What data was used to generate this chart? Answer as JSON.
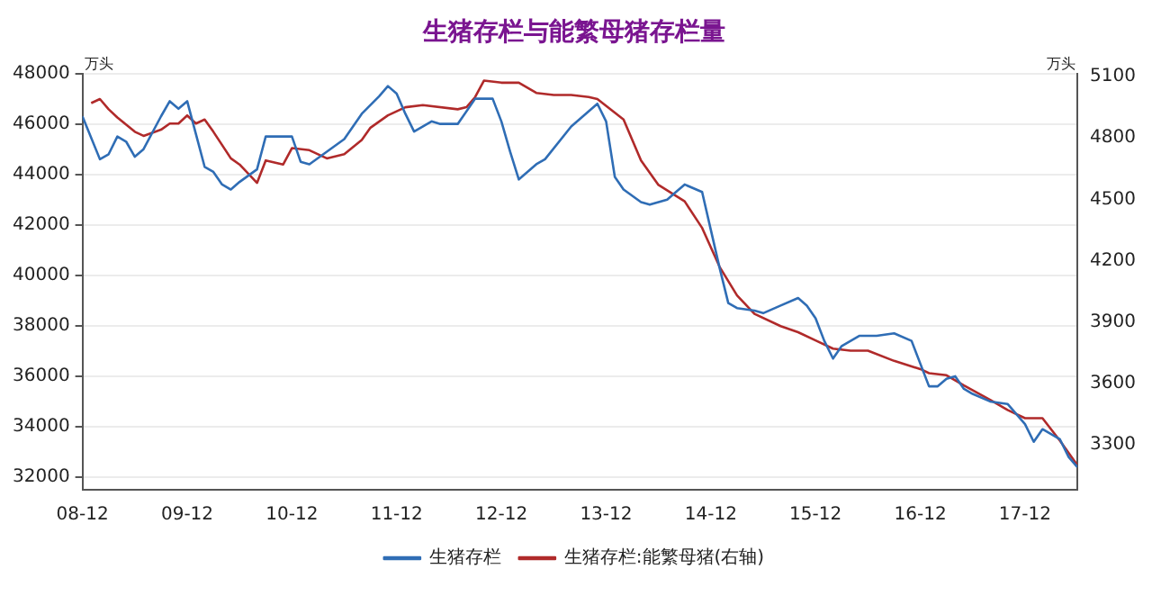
{
  "chart_data": {
    "type": "line",
    "title": "生猪存栏与能繁母猪存栏量",
    "ylabel": "万头",
    "y2label": "万头",
    "xlim": [
      "2008-12",
      "2018-06"
    ],
    "xticks": [
      {
        "value": "2008-12",
        "label": "08-12"
      },
      {
        "value": "2009-12",
        "label": "09-12"
      },
      {
        "value": "2010-12",
        "label": "10-12"
      },
      {
        "value": "2011-12",
        "label": "11-12"
      },
      {
        "value": "2012-12",
        "label": "12-12"
      },
      {
        "value": "2013-12",
        "label": "13-12"
      },
      {
        "value": "2014-12",
        "label": "14-12"
      },
      {
        "value": "2015-12",
        "label": "15-12"
      },
      {
        "value": "2016-12",
        "label": "16-12"
      },
      {
        "value": "2017-12",
        "label": "17-12"
      }
    ],
    "ylim": [
      31500,
      48000
    ],
    "yticks": [
      32000,
      34000,
      36000,
      38000,
      40000,
      42000,
      44000,
      46000,
      48000
    ],
    "y2lim": [
      3080,
      5115
    ],
    "y2ticks": [
      3300,
      3600,
      3900,
      4200,
      4500,
      4800,
      5100
    ],
    "grid": "y",
    "legend": "bottom",
    "marker": "none",
    "line_style": "solid",
    "series": [
      {
        "name": "生猪存栏",
        "color": "#2f6db5",
        "x": [
          "2008-12",
          "2009-02",
          "2009-03",
          "2009-04",
          "2009-05",
          "2009-06",
          "2009-07",
          "2009-09",
          "2009-10",
          "2009-11",
          "2009-12",
          "2010-01",
          "2010-02",
          "2010-03",
          "2010-04",
          "2010-05",
          "2010-06",
          "2010-08",
          "2010-09",
          "2010-12",
          "2011-01",
          "2011-02",
          "2011-04",
          "2011-06",
          "2011-08",
          "2011-10",
          "2011-11",
          "2011-12",
          "2012-01",
          "2012-02",
          "2012-04",
          "2012-05",
          "2012-07",
          "2012-09",
          "2012-11",
          "2012-12",
          "2013-01",
          "2013-02",
          "2013-04",
          "2013-05",
          "2013-08",
          "2013-11",
          "2013-12",
          "2014-01",
          "2014-02",
          "2014-04",
          "2014-05",
          "2014-07",
          "2014-08",
          "2014-09",
          "2014-11",
          "2014-12",
          "2015-01",
          "2015-02",
          "2015-03",
          "2015-05",
          "2015-06",
          "2015-08",
          "2015-10",
          "2015-11",
          "2015-12",
          "2016-01",
          "2016-02",
          "2016-03",
          "2016-05",
          "2016-07",
          "2016-09",
          "2016-11",
          "2016-12",
          "2017-01",
          "2017-02",
          "2017-03",
          "2017-04",
          "2017-05",
          "2017-06",
          "2017-08",
          "2017-10",
          "2017-12",
          "2018-01",
          "2018-02",
          "2018-04",
          "2018-05",
          "2018-06"
        ],
        "values": [
          46300,
          44600,
          44800,
          45500,
          45300,
          44700,
          45000,
          46300,
          46900,
          46600,
          46900,
          45600,
          44300,
          44100,
          43600,
          43400,
          43700,
          44200,
          45500,
          45500,
          44500,
          44400,
          44900,
          45400,
          46400,
          47100,
          47500,
          47200,
          46400,
          45700,
          46100,
          46000,
          46000,
          47000,
          47000,
          46100,
          44900,
          43800,
          44400,
          44600,
          45900,
          46800,
          46100,
          43900,
          43400,
          42900,
          42800,
          43000,
          43300,
          43600,
          43300,
          41800,
          40300,
          38900,
          38700,
          38600,
          38500,
          38800,
          39100,
          38800,
          38300,
          37400,
          36700,
          37200,
          37600,
          37600,
          37700,
          37400,
          36500,
          35600,
          35600,
          35900,
          36000,
          35500,
          35300,
          35000,
          34900,
          34100,
          33400,
          33900,
          33500,
          32800,
          32400
        ]
      },
      {
        "name": "生猪存栏:能繁母猪(右轴)",
        "color": "#b02a2a",
        "axis": "y2",
        "x": [
          "2009-01",
          "2009-02",
          "2009-03",
          "2009-04",
          "2009-06",
          "2009-07",
          "2009-09",
          "2009-10",
          "2009-11",
          "2009-12",
          "2010-01",
          "2010-02",
          "2010-03",
          "2010-05",
          "2010-06",
          "2010-08",
          "2010-09",
          "2010-11",
          "2010-12",
          "2011-02",
          "2011-04",
          "2011-06",
          "2011-08",
          "2011-09",
          "2011-11",
          "2012-01",
          "2012-03",
          "2012-07",
          "2012-08",
          "2012-09",
          "2012-10",
          "2012-12",
          "2013-02",
          "2013-04",
          "2013-06",
          "2013-08",
          "2013-10",
          "2013-11",
          "2014-02",
          "2014-04",
          "2014-06",
          "2014-09",
          "2014-11",
          "2015-01",
          "2015-03",
          "2015-05",
          "2015-08",
          "2015-10",
          "2015-12",
          "2016-02",
          "2016-04",
          "2016-06",
          "2016-09",
          "2016-12",
          "2017-01",
          "2017-03",
          "2017-05",
          "2017-08",
          "2017-10",
          "2017-12",
          "2018-02",
          "2018-04",
          "2018-06"
        ],
        "values": [
          4970,
          4990,
          4940,
          4900,
          4830,
          4810,
          4840,
          4870,
          4870,
          4910,
          4870,
          4890,
          4830,
          4700,
          4670,
          4580,
          4690,
          4670,
          4750,
          4740,
          4700,
          4720,
          4790,
          4850,
          4910,
          4950,
          4960,
          4940,
          4950,
          5000,
          5080,
          5070,
          5070,
          5020,
          5010,
          5010,
          5000,
          4990,
          4890,
          4690,
          4570,
          4490,
          4360,
          4170,
          4030,
          3940,
          3880,
          3850,
          3810,
          3770,
          3760,
          3760,
          3710,
          3670,
          3650,
          3640,
          3590,
          3520,
          3470,
          3430,
          3430,
          3320,
          3200
        ]
      }
    ]
  }
}
